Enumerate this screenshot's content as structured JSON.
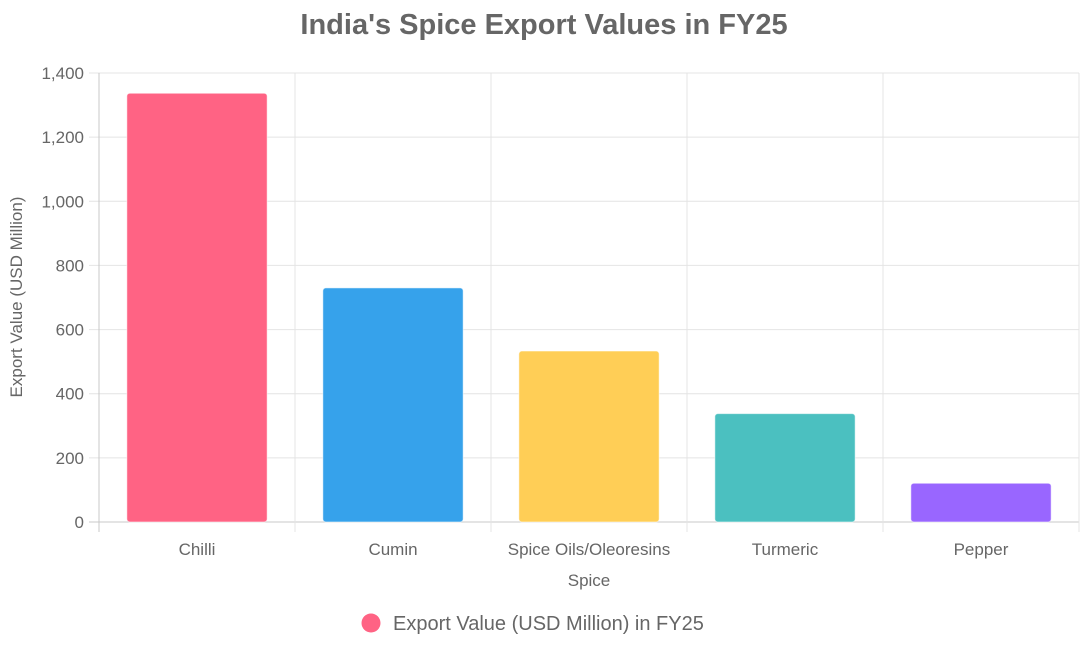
{
  "chart_data": {
    "type": "bar",
    "title": "India's Spice Export Values in FY25",
    "xlabel": "Spice",
    "ylabel": "Export Value (USD Million)",
    "categories": [
      "Chilli",
      "Cumin",
      "Spice Oils/Oleoresins",
      "Turmeric",
      "Pepper"
    ],
    "series": [
      {
        "name": "Export Value (USD Million) in FY25",
        "values": [
          1337,
          730,
          533,
          338,
          121
        ]
      }
    ],
    "bar_colors": [
      "#ff6384",
      "#36a2eb",
      "#ffce56",
      "#4bc0c0",
      "#9966ff"
    ],
    "legend_color": "#ff6384",
    "ylim": [
      0,
      1400
    ],
    "y_ticks": [
      "0",
      "200",
      "400",
      "600",
      "800",
      "1,000",
      "1,200",
      "1,400"
    ],
    "grid": true,
    "legend_position": "bottom"
  }
}
